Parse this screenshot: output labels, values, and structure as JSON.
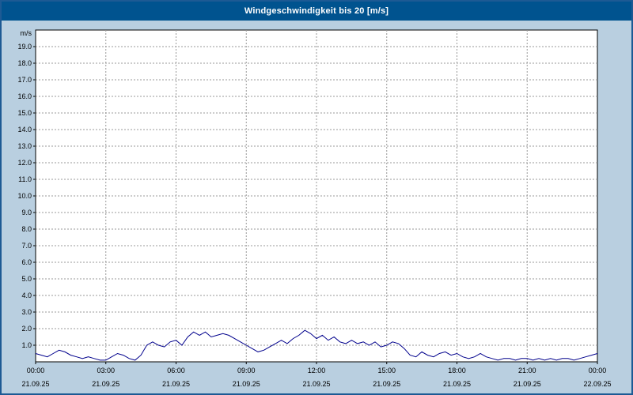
{
  "colors": {
    "title_bar": "#00538f",
    "window_bg": "#b9cfe0",
    "border": "#1d5a94",
    "plot_bg": "#ffffff",
    "grid": "#9a9a9a",
    "axis": "#000000",
    "line": "#00008c"
  },
  "chart_data": {
    "type": "line",
    "title": "Windgeschwindigkeit bis 20 [m/s]",
    "ylabel": "m/s",
    "xlabel": "",
    "grid": true,
    "legend": "none",
    "ylim": [
      0,
      20
    ],
    "x_range": [
      0,
      24
    ],
    "ytick_labels": [
      "1.0",
      "2.0",
      "3.0",
      "4.0",
      "5.0",
      "6.0",
      "7.0",
      "8.0",
      "9.0",
      "10.0",
      "11.0",
      "12.0",
      "13.0",
      "14.0",
      "15.0",
      "16.0",
      "17.0",
      "18.0",
      "19.0"
    ],
    "xticks": [
      {
        "hour": 0,
        "time": "00:00",
        "date": "21.09.25"
      },
      {
        "hour": 3,
        "time": "03:00",
        "date": "21.09.25"
      },
      {
        "hour": 6,
        "time": "06:00",
        "date": "21.09.25"
      },
      {
        "hour": 9,
        "time": "09:00",
        "date": "21.09.25"
      },
      {
        "hour": 12,
        "time": "12:00",
        "date": "21.09.25"
      },
      {
        "hour": 15,
        "time": "15:00",
        "date": "21.09.25"
      },
      {
        "hour": 18,
        "time": "18:00",
        "date": "21.09.25"
      },
      {
        "hour": 21,
        "time": "21:00",
        "date": "21.09.25"
      },
      {
        "hour": 24,
        "time": "00:00",
        "date": "22.09.25"
      }
    ],
    "series_name": "Windgeschwindigkeit",
    "x_start_hour": 0,
    "x_step_hours": 0.25,
    "values": [
      0.5,
      0.4,
      0.3,
      0.5,
      0.7,
      0.6,
      0.4,
      0.3,
      0.2,
      0.3,
      0.2,
      0.1,
      0.1,
      0.3,
      0.5,
      0.4,
      0.2,
      0.1,
      0.4,
      1.0,
      1.2,
      1.0,
      0.9,
      1.2,
      1.3,
      1.0,
      1.5,
      1.8,
      1.6,
      1.8,
      1.5,
      1.6,
      1.7,
      1.6,
      1.4,
      1.2,
      1.0,
      0.8,
      0.6,
      0.7,
      0.9,
      1.1,
      1.3,
      1.1,
      1.4,
      1.6,
      1.9,
      1.7,
      1.4,
      1.6,
      1.3,
      1.5,
      1.2,
      1.1,
      1.3,
      1.1,
      1.2,
      1.0,
      1.2,
      0.9,
      1.0,
      1.2,
      1.1,
      0.8,
      0.4,
      0.3,
      0.6,
      0.4,
      0.3,
      0.5,
      0.6,
      0.4,
      0.5,
      0.3,
      0.2,
      0.3,
      0.5,
      0.3,
      0.2,
      0.1,
      0.2,
      0.2,
      0.1,
      0.2,
      0.2,
      0.1,
      0.2,
      0.1,
      0.2,
      0.1,
      0.2,
      0.2,
      0.1,
      0.2,
      0.3,
      0.4,
      0.5
    ]
  }
}
